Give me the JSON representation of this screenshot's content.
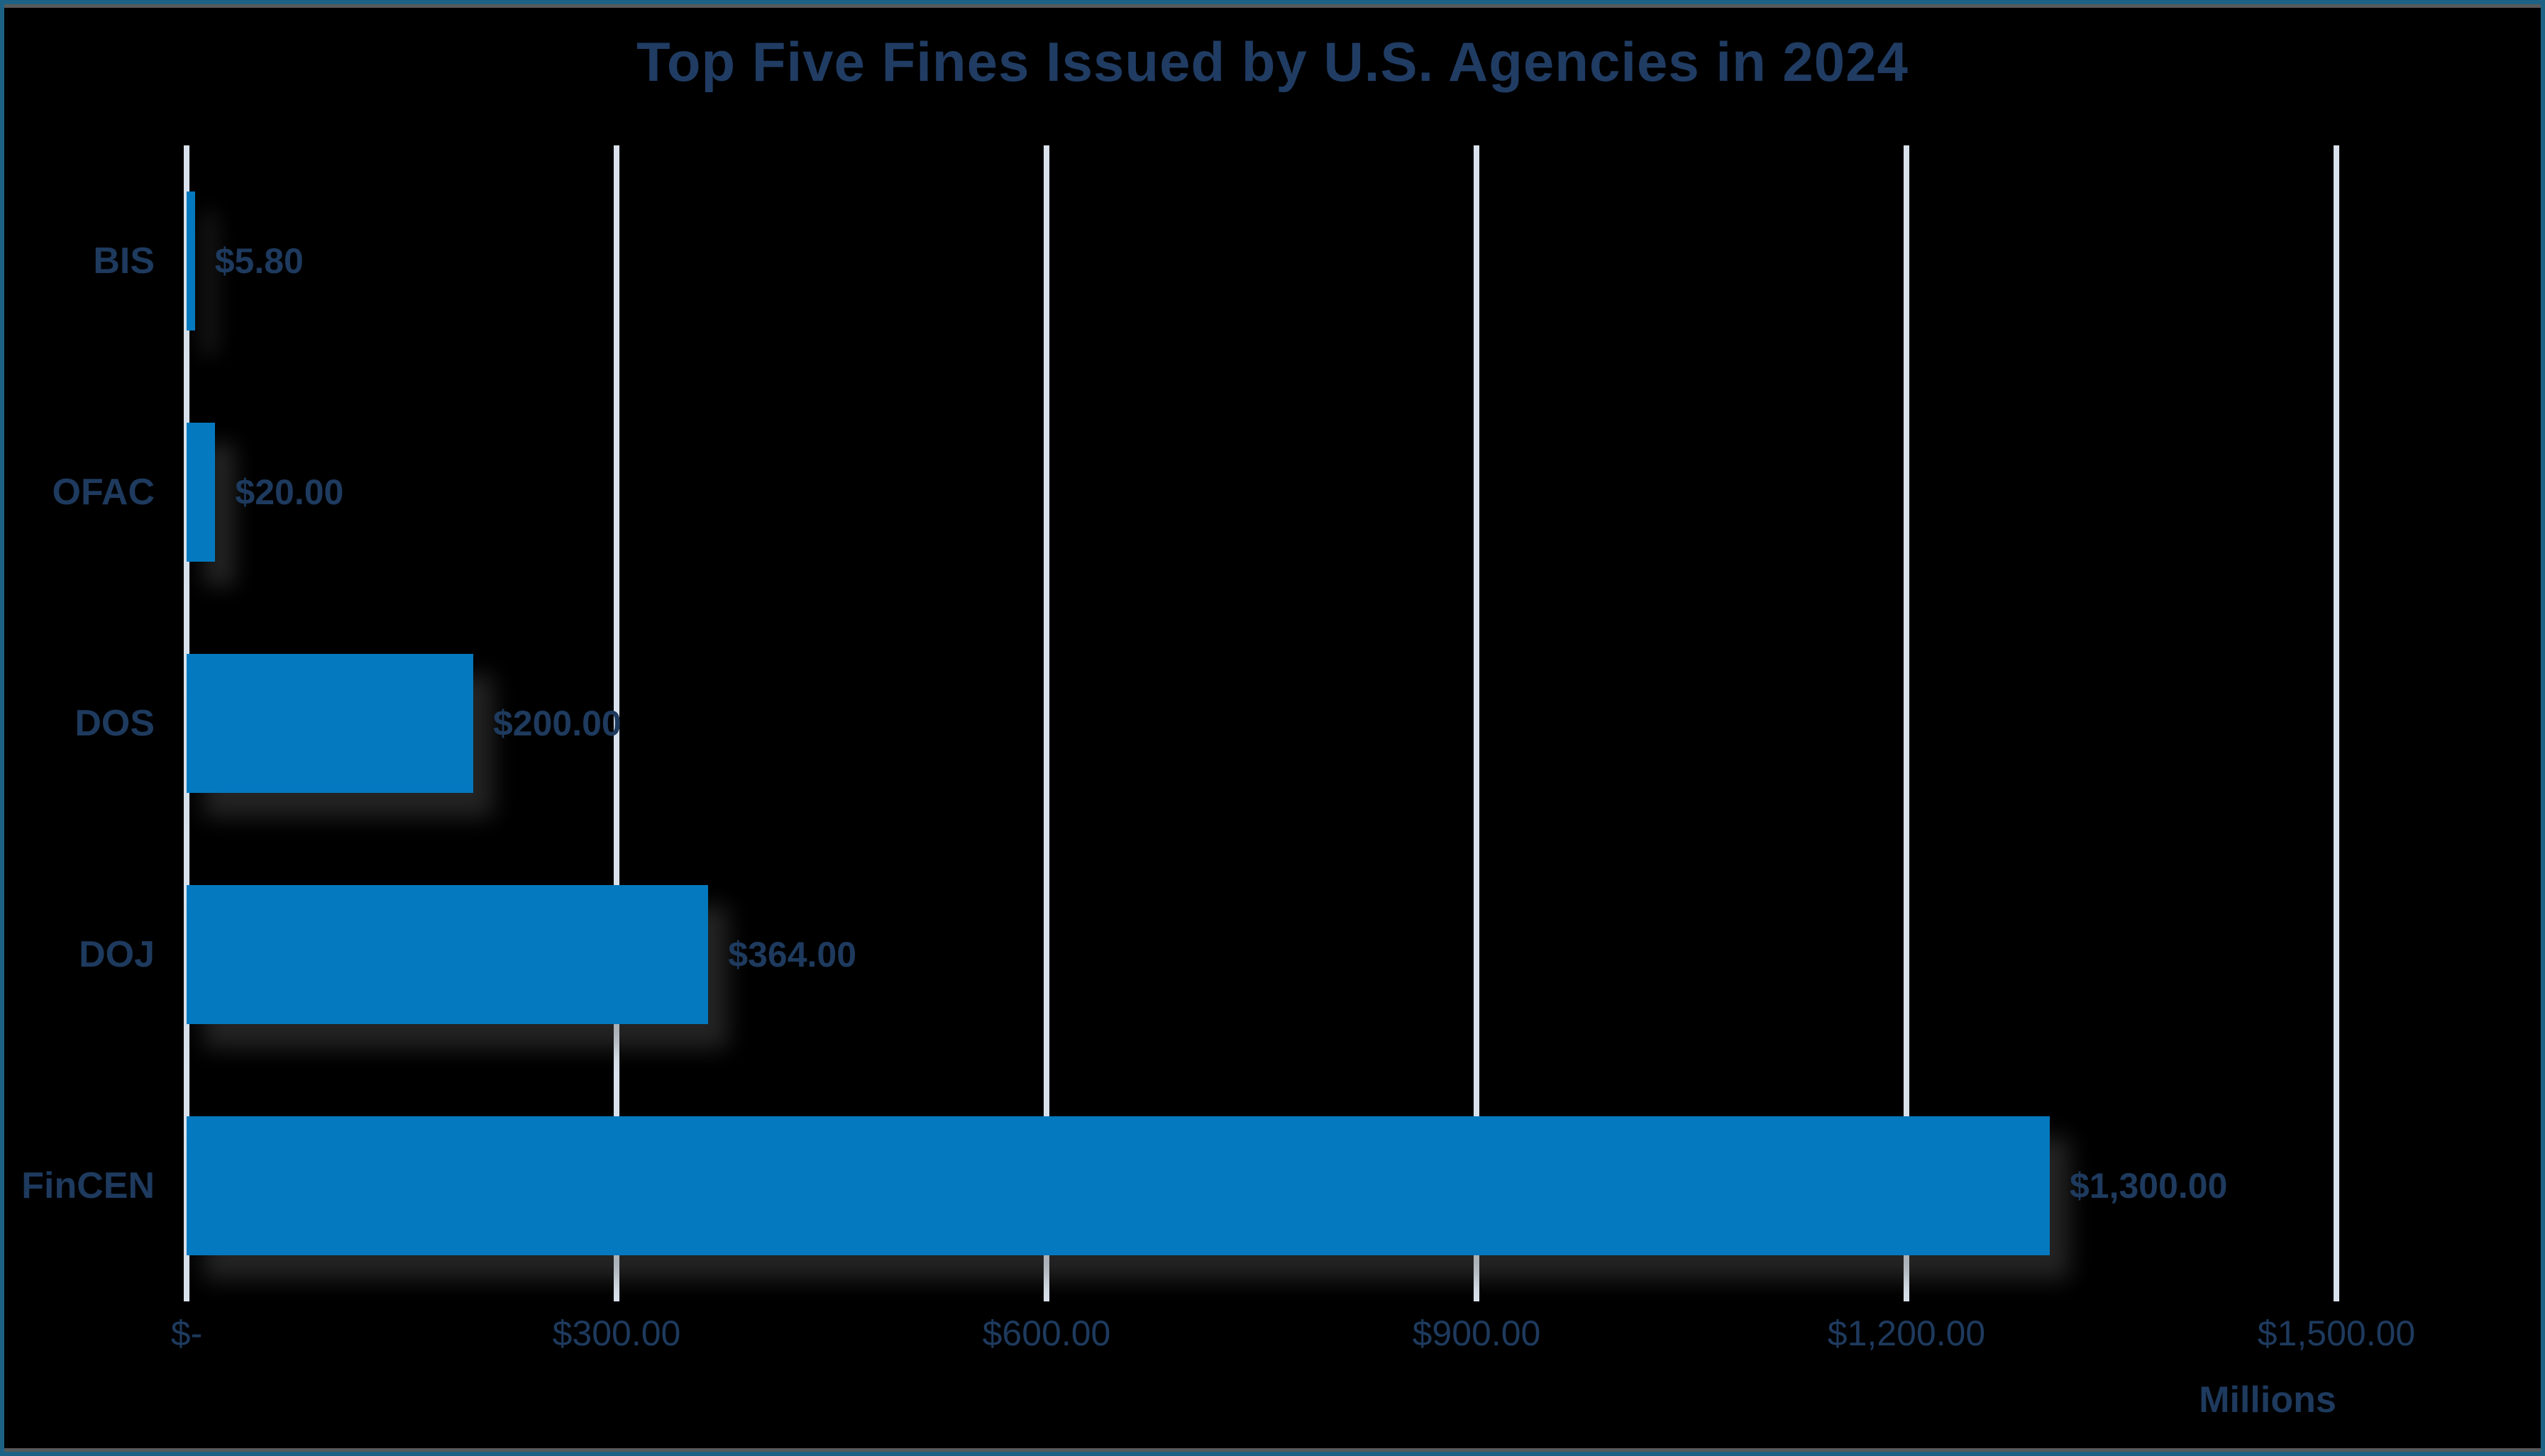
{
  "frame": {
    "border_color": "#1D6285",
    "inner_edge_color": "#58595B",
    "background_color": "#000000"
  },
  "chart_data": {
    "type": "bar",
    "orientation": "horizontal",
    "title": "Top Five Fines Issued by U.S. Agencies in 2024",
    "categories": [
      "BIS",
      "OFAC",
      "DOS",
      "DOJ",
      "FinCEN"
    ],
    "values": [
      5.8,
      20.0,
      200.0,
      364.0,
      1300.0
    ],
    "value_labels": [
      "$5.80",
      "$20.00",
      "$200.00",
      "$364.00",
      "$1,300.00"
    ],
    "x_ticks": [
      "$-",
      "$300.00",
      "$600.00",
      "$900.00",
      "$1,200.00",
      "$1,500.00"
    ],
    "x_tick_values": [
      0,
      300,
      600,
      900,
      1200,
      1500
    ],
    "xlim": [
      0,
      1500
    ],
    "xlabel": "",
    "ylabel": "",
    "axis_unit": "Millions",
    "legend": "none",
    "grid": "vertical-gridlines-on",
    "bar_color": "#0579BF",
    "gridline_color": "#D9E2EC",
    "text_color": "#1E3A5E",
    "title_color": "#203C63"
  }
}
